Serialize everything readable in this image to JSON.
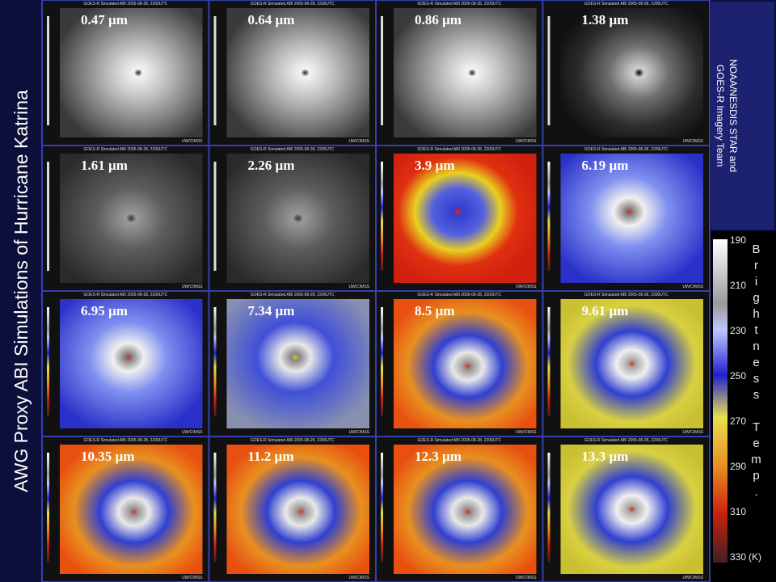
{
  "title": "AWG Proxy ABI Simulations of Hurricane Katrina",
  "credit": [
    "NOAA/NESDIS  STAR  and",
    "GOES-R Imagery Team"
  ],
  "panel_header": "GOES-R Simulated ABI 2005-08-28, 2200UTC",
  "panel_footer": "UW/CIMSS",
  "panels": [
    "0.47 µm",
    "0.64 µm",
    "0.86 µm",
    "1.38 µm",
    "1.61 µm",
    "2.26 µm",
    "3.9 µm",
    "6.19 µm",
    "6.95 µm",
    "7.34 µm",
    "8.5 µm",
    "9.61 µm",
    "10.35 µm",
    "11.2 µm",
    "12.3 µm",
    "13.3 µm"
  ],
  "colorbar": {
    "ticks": [
      190,
      210,
      230,
      250,
      270,
      290,
      310,
      330
    ],
    "unit": "(K)",
    "label": "Brightness Temp."
  }
}
